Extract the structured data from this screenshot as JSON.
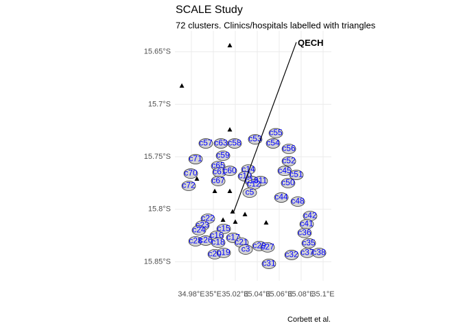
{
  "chart_data": {
    "type": "map",
    "title": "SCALE Study",
    "subtitle": "72 clusters. Clinics/hospitals labelled with triangles",
    "caption": "Corbett et al.",
    "xlim": [
      34.965,
      35.1075
    ],
    "ylim": [
      -15.868,
      -15.63
    ],
    "xticks": [
      {
        "value": 34.98,
        "label": "34.98°E"
      },
      {
        "value": 35.0,
        "label": "35°E"
      },
      {
        "value": 35.02,
        "label": "35.02°E"
      },
      {
        "value": 35.04,
        "label": "35.04°E"
      },
      {
        "value": 35.06,
        "label": "35.06°E"
      },
      {
        "value": 35.08,
        "label": "35.08°E"
      },
      {
        "value": 35.1,
        "label": "35.1°E"
      }
    ],
    "yticks": [
      {
        "value": -15.65,
        "label": "15.65°S"
      },
      {
        "value": -15.7,
        "label": "15.7°S"
      },
      {
        "value": -15.75,
        "label": "15.75°S"
      },
      {
        "value": -15.8,
        "label": "15.8°S"
      },
      {
        "value": -15.85,
        "label": "15.85°S"
      }
    ],
    "grid": true,
    "cluster_color": "#0000ff",
    "clusters": [
      {
        "label": "c57",
        "x": 34.9931,
        "y": -15.7373
      },
      {
        "label": "c63",
        "x": 35.0069,
        "y": -15.7373
      },
      {
        "label": "c58",
        "x": 35.0194,
        "y": -15.7373
      },
      {
        "label": "c59",
        "x": 35.0088,
        "y": -15.749
      },
      {
        "label": "c71",
        "x": 34.9838,
        "y": -15.7523
      },
      {
        "label": "c70",
        "x": 34.9794,
        "y": -15.766
      },
      {
        "label": "c72",
        "x": 34.9775,
        "y": -15.7777
      },
      {
        "label": "c65",
        "x": 35.0044,
        "y": -15.7588
      },
      {
        "label": "c61",
        "x": 35.0056,
        "y": -15.7647
      },
      {
        "label": "c60",
        "x": 35.015,
        "y": -15.7634
      },
      {
        "label": "c67",
        "x": 35.0044,
        "y": -15.7731
      },
      {
        "label": "c53",
        "x": 35.0381,
        "y": -15.7334
      },
      {
        "label": "c55",
        "x": 35.0569,
        "y": -15.7275
      },
      {
        "label": "c54",
        "x": 35.0544,
        "y": -15.7373
      },
      {
        "label": "c56",
        "x": 35.0688,
        "y": -15.7425
      },
      {
        "label": "c52",
        "x": 35.0688,
        "y": -15.7542
      },
      {
        "label": "c45",
        "x": 35.065,
        "y": -15.7634
      },
      {
        "label": "c51",
        "x": 35.0756,
        "y": -15.7673
      },
      {
        "label": "c50",
        "x": 35.0681,
        "y": -15.7751
      },
      {
        "label": "c44",
        "x": 35.0619,
        "y": -15.7888
      },
      {
        "label": "c48",
        "x": 35.0769,
        "y": -15.7927
      },
      {
        "label": "c14",
        "x": 35.0319,
        "y": -15.7621
      },
      {
        "label": "c10",
        "x": 35.0288,
        "y": -15.7686
      },
      {
        "label": "c13",
        "x": 35.035,
        "y": -15.7731
      },
      {
        "label": "c11",
        "x": 35.0431,
        "y": -15.7731
      },
      {
        "label": "c12",
        "x": 35.0369,
        "y": -15.7764
      },
      {
        "label": "c5",
        "x": 35.0331,
        "y": -15.7842
      },
      {
        "label": "c22",
        "x": 34.995,
        "y": -15.809
      },
      {
        "label": "c23",
        "x": 34.99,
        "y": -15.8155
      },
      {
        "label": "c24",
        "x": 34.9869,
        "y": -15.82
      },
      {
        "label": "c28",
        "x": 34.9838,
        "y": -15.8305
      },
      {
        "label": "c26",
        "x": 34.9931,
        "y": -15.8298
      },
      {
        "label": "c15",
        "x": 35.0094,
        "y": -15.8187
      },
      {
        "label": "c16",
        "x": 35.0031,
        "y": -15.8252
      },
      {
        "label": "c18",
        "x": 35.0044,
        "y": -15.8318
      },
      {
        "label": "c17",
        "x": 35.0181,
        "y": -15.8272
      },
      {
        "label": "c20",
        "x": 35.0013,
        "y": -15.8428
      },
      {
        "label": "c19",
        "x": 35.0094,
        "y": -15.8415
      },
      {
        "label": "c21",
        "x": 35.0256,
        "y": -15.8318
      },
      {
        "label": "c3",
        "x": 35.0294,
        "y": -15.8383
      },
      {
        "label": "c29",
        "x": 35.0419,
        "y": -15.835
      },
      {
        "label": "c27",
        "x": 35.0494,
        "y": -15.8363
      },
      {
        "label": "c31",
        "x": 35.0506,
        "y": -15.852
      },
      {
        "label": "c42",
        "x": 35.0881,
        "y": -15.8064
      },
      {
        "label": "c41",
        "x": 35.085,
        "y": -15.8142
      },
      {
        "label": "c36",
        "x": 35.0831,
        "y": -15.8226
      },
      {
        "label": "c35",
        "x": 35.0869,
        "y": -15.8324
      },
      {
        "label": "c32",
        "x": 35.0713,
        "y": -15.8435
      },
      {
        "label": "c37",
        "x": 35.0856,
        "y": -15.8415
      },
      {
        "label": "c38",
        "x": 35.0963,
        "y": -15.8415
      }
    ],
    "facilities": [
      {
        "x": 35.015,
        "y": -15.6441
      },
      {
        "x": 34.9713,
        "y": -15.6826
      },
      {
        "x": 35.015,
        "y": -15.7243
      },
      {
        "x": 34.985,
        "y": -15.7712
      },
      {
        "x": 35.0013,
        "y": -15.7829
      },
      {
        "x": 35.015,
        "y": -15.7829
      },
      {
        "x": 35.0175,
        "y": -15.8024
      },
      {
        "x": 35.02,
        "y": -15.8122
      },
      {
        "x": 35.0288,
        "y": -15.805
      },
      {
        "x": 35.0481,
        "y": -15.8129
      },
      {
        "x": 35.0088,
        "y": -15.8103
      }
    ],
    "annotation": {
      "label": "QECH",
      "x": 35.0181,
      "y": -15.8037,
      "label_x": 35.0756,
      "label_y": -15.6409
    }
  }
}
